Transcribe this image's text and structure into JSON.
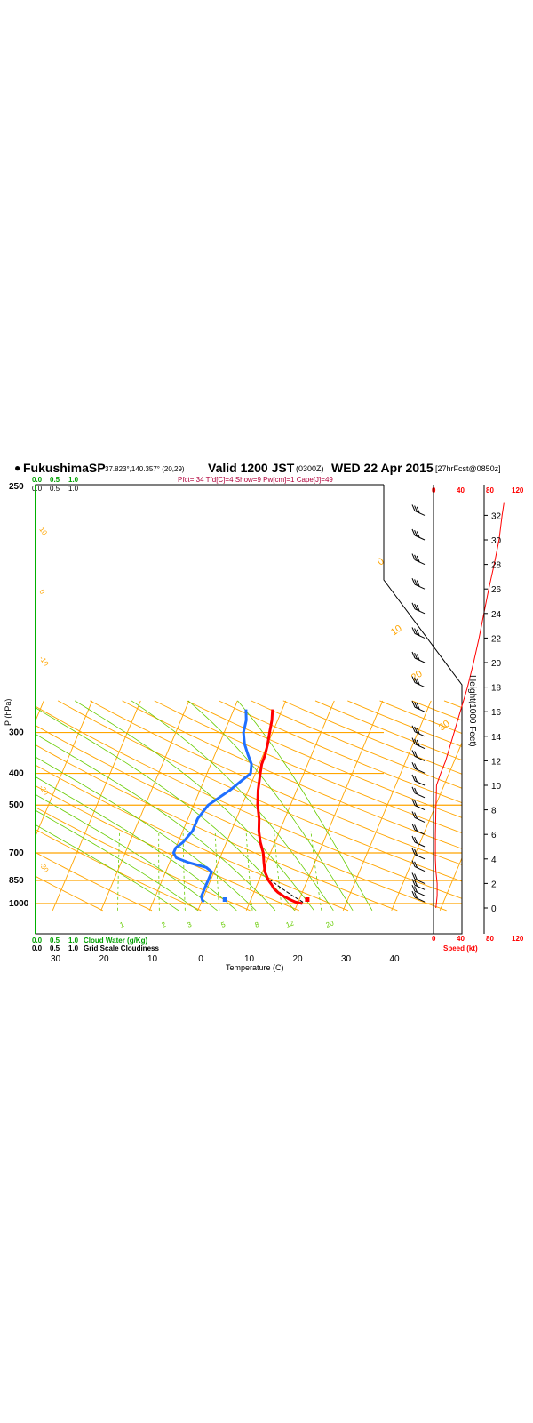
{
  "header": {
    "station": "FukushimaSP",
    "coords": "37.823°,140.357° (20,29)",
    "valid": "Valid 1200 JST",
    "utc": "(0300Z)",
    "date": "WED 22 Apr 2015",
    "forecast": "[27hrFcst@0850z]",
    "indices": "Pfct=.34 Tfd[C]=4 Show=9 Pw[cm]=1 Cape[J]=49"
  },
  "scales": {
    "cloud_top": [
      "0.0",
      "0.5",
      "1.0"
    ],
    "grid_top": [
      "0.0",
      "0.5",
      "1.0"
    ],
    "cloud_bottom": [
      "0.0",
      "0.5",
      "1.0"
    ],
    "grid_bottom": [
      "0.0",
      "0.5",
      "1.0"
    ],
    "cloud_label": "Cloud Water (g/Kg)",
    "grid_label": "Grid Scale Cloudiness",
    "speed_top": [
      "0",
      "40",
      "80",
      "120"
    ],
    "speed_bottom": [
      "0",
      "40",
      "80",
      "120"
    ],
    "speed_label": "Speed (kt)"
  },
  "colors": {
    "isobar": "#ffa500",
    "adiabat": "#ffa500",
    "moist_adiabat": "#66cc00",
    "mixing_ratio": "#66cc00",
    "temperature": "#ff0000",
    "dewpoint": "#1f6fff",
    "parcel": "#000000",
    "wind_speed": "#ff0000"
  },
  "chart_data": {
    "type": "line",
    "title": "FukushimaSP",
    "xlabel": "Temperature (C)",
    "ylabel": "P (hPa)",
    "y2label": "Height(1000 Feet)",
    "x_ticks": [
      "30",
      "20",
      "10",
      "0",
      "10",
      "20",
      "30",
      "40"
    ],
    "pressure_ticks": [
      "250",
      "300",
      "400",
      "500",
      "700",
      "850",
      "1000"
    ],
    "height_ticks": [
      "0",
      "2",
      "4",
      "6",
      "8",
      "10",
      "12",
      "14",
      "16",
      "18",
      "20",
      "22",
      "24",
      "26",
      "28",
      "30",
      "32"
    ],
    "dry_adiabat_labels": [
      "10",
      "0",
      "-10",
      "-20",
      "-30"
    ],
    "theta_labels": [
      "0",
      "10",
      "20",
      "30"
    ],
    "mixing_ratio_labels": [
      "1",
      "2",
      "3",
      "5",
      "8",
      "12",
      "20"
    ],
    "series": [
      {
        "name": "Temperature",
        "points": [
          [
            1000,
            21.0
          ],
          [
            990,
            19.5
          ],
          [
            975,
            18.3
          ],
          [
            950,
            16.5
          ],
          [
            925,
            15.0
          ],
          [
            900,
            13.8
          ],
          [
            875,
            13.0
          ],
          [
            850,
            12.0
          ],
          [
            800,
            10.5
          ],
          [
            750,
            9.5
          ],
          [
            700,
            8.5
          ],
          [
            650,
            7.0
          ],
          [
            600,
            5.7
          ],
          [
            550,
            4.7
          ],
          [
            500,
            3.2
          ],
          [
            450,
            2.0
          ],
          [
            400,
            1.0
          ],
          [
            375,
            0.5
          ],
          [
            350,
            0.4
          ],
          [
            325,
            0.0
          ],
          [
            300,
            -0.6
          ],
          [
            275,
            -1.2
          ],
          [
            255,
            -2.0
          ]
        ]
      },
      {
        "name": "Dewpoint",
        "points": [
          [
            990,
            0.5
          ],
          [
            975,
            0.0
          ],
          [
            950,
            -0.5
          ],
          [
            900,
            -0.5
          ],
          [
            850,
            -0.5
          ],
          [
            800,
            -0.5
          ],
          [
            775,
            -2.0
          ],
          [
            750,
            -6.0
          ],
          [
            725,
            -9.0
          ],
          [
            700,
            -10.0
          ],
          [
            675,
            -10.0
          ],
          [
            650,
            -9.0
          ],
          [
            600,
            -8.0
          ],
          [
            550,
            -8.0
          ],
          [
            500,
            -7.0
          ],
          [
            450,
            -3.8
          ],
          [
            400,
            -1.0
          ],
          [
            375,
            -1.6
          ],
          [
            350,
            -3.2
          ],
          [
            325,
            -4.8
          ],
          [
            300,
            -6.0
          ],
          [
            275,
            -6.5
          ],
          [
            255,
            -7.5
          ]
        ]
      },
      {
        "name": "Parcel",
        "points": [
          [
            990,
            21.0
          ],
          [
            950,
            18.5
          ],
          [
            900,
            15.5
          ],
          [
            850,
            12.5
          ]
        ]
      },
      {
        "name": "Wind Speed",
        "points": [
          [
            0,
            4
          ],
          [
            1,
            6
          ],
          [
            2,
            6
          ],
          [
            3,
            4
          ],
          [
            4,
            3
          ],
          [
            6,
            3
          ],
          [
            8,
            4
          ],
          [
            10,
            5
          ],
          [
            11,
            12
          ],
          [
            12,
            20
          ],
          [
            14,
            32
          ],
          [
            16,
            44
          ],
          [
            18,
            56
          ],
          [
            20,
            66
          ],
          [
            22,
            75
          ],
          [
            24,
            83
          ],
          [
            26,
            91
          ],
          [
            28,
            100
          ],
          [
            30,
            108
          ],
          [
            32,
            113
          ],
          [
            33,
            116
          ]
        ]
      }
    ],
    "surface_points": {
      "temperature": 22.0,
      "dewpoint": 5.0
    },
    "wind_levels_kft": [
      0.5,
      1,
      1.5,
      2,
      3,
      4,
      5,
      6,
      7,
      8,
      9,
      10,
      11,
      12,
      13,
      14,
      16,
      18,
      20,
      22,
      24,
      26,
      28,
      30,
      32
    ],
    "xlim": [
      -35,
      45
    ],
    "ylim": [
      1000,
      250
    ],
    "speed_lim": [
      0,
      120
    ],
    "height_lim": [
      0,
      34
    ],
    "grid": true
  }
}
